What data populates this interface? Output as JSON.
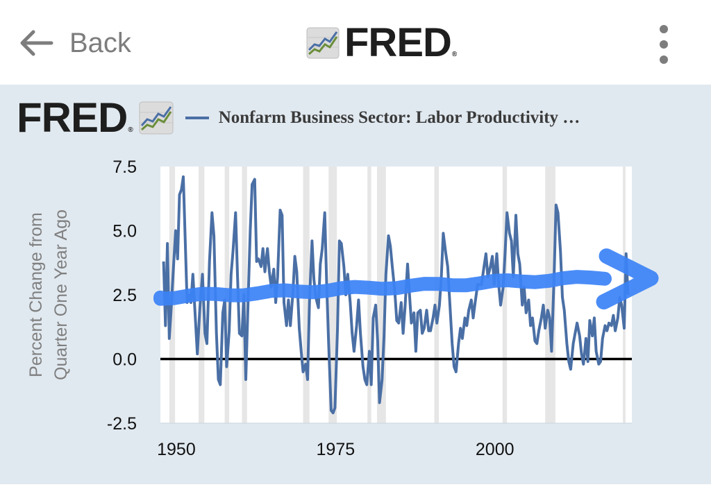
{
  "nav": {
    "back_label": "Back",
    "brand": "FRED",
    "brand_mark": "®",
    "icons": {
      "back": "arrow-left-icon",
      "more": "more-vertical-icon",
      "logo": "trend-graph-icon"
    }
  },
  "panel": {
    "brand": "FRED",
    "brand_mark": "®",
    "background_color": "#e1e9f0",
    "series_color": "#4a6fa5",
    "annotation_color": "#3b82f6"
  },
  "chart_data": {
    "type": "line",
    "title": "Nonfarm Business Sector: Labor Productivity …",
    "ylabel_lines": [
      "Percent Change from",
      "Quarter One Year Ago"
    ],
    "xlabel": "",
    "ylim": [
      -2.5,
      7.5
    ],
    "xlim": [
      1947.5,
      2021.5
    ],
    "y_ticks": [
      {
        "value": 7.5,
        "label": "7.5"
      },
      {
        "value": 5.0,
        "label": "5.0"
      },
      {
        "value": 2.5,
        "label": "2.5"
      },
      {
        "value": 0.0,
        "label": "0.0"
      },
      {
        "value": -2.5,
        "label": "-2.5"
      }
    ],
    "x_ticks": [
      {
        "value": 1950,
        "label": "1950"
      },
      {
        "value": 1975,
        "label": "1975"
      },
      {
        "value": 2000,
        "label": "2000"
      }
    ],
    "zero_line": 0,
    "recessions": [
      [
        1948.9,
        1949.8
      ],
      [
        1953.5,
        1954.4
      ],
      [
        1957.6,
        1958.3
      ],
      [
        1960.3,
        1961.1
      ],
      [
        1969.9,
        1970.9
      ],
      [
        1973.9,
        1975.2
      ],
      [
        1980.0,
        1980.6
      ],
      [
        1981.5,
        1982.9
      ],
      [
        1990.5,
        1991.2
      ],
      [
        2001.2,
        2001.9
      ],
      [
        2007.9,
        2009.5
      ],
      [
        2020.1,
        2020.5
      ]
    ],
    "series": [
      {
        "name": "Nonfarm Business Sector: Labor Productivity",
        "points": [
          [
            1948.0,
            3.8
          ],
          [
            1948.3,
            1.3
          ],
          [
            1948.6,
            4.5
          ],
          [
            1948.9,
            0.8
          ],
          [
            1949.2,
            2.0
          ],
          [
            1949.6,
            3.8
          ],
          [
            1949.9,
            5.0
          ],
          [
            1950.2,
            3.9
          ],
          [
            1950.5,
            6.4
          ],
          [
            1950.8,
            6.6
          ],
          [
            1951.1,
            7.1
          ],
          [
            1951.4,
            4.6
          ],
          [
            1951.7,
            2.2
          ],
          [
            1952.0,
            2.5
          ],
          [
            1952.3,
            2.2
          ],
          [
            1952.6,
            3.3
          ],
          [
            1952.9,
            2.0
          ],
          [
            1953.3,
            0.2
          ],
          [
            1953.7,
            2.0
          ],
          [
            1954.1,
            3.3
          ],
          [
            1954.5,
            1.0
          ],
          [
            1954.8,
            0.6
          ],
          [
            1955.2,
            3.8
          ],
          [
            1955.6,
            5.7
          ],
          [
            1955.9,
            4.8
          ],
          [
            1956.3,
            1.0
          ],
          [
            1956.6,
            -0.8
          ],
          [
            1956.9,
            -1.0
          ],
          [
            1957.3,
            1.8
          ],
          [
            1957.6,
            2.3
          ],
          [
            1957.9,
            -0.3
          ],
          [
            1958.3,
            1.1
          ],
          [
            1958.6,
            3.3
          ],
          [
            1958.9,
            4.2
          ],
          [
            1959.3,
            5.7
          ],
          [
            1959.6,
            3.3
          ],
          [
            1959.9,
            1.0
          ],
          [
            1960.3,
            0.9
          ],
          [
            1960.6,
            2.5
          ],
          [
            1960.9,
            -0.8
          ],
          [
            1961.3,
            2.5
          ],
          [
            1961.6,
            5.0
          ],
          [
            1961.9,
            6.8
          ],
          [
            1962.3,
            7.0
          ],
          [
            1962.6,
            3.8
          ],
          [
            1962.9,
            3.9
          ],
          [
            1963.3,
            3.6
          ],
          [
            1963.6,
            4.3
          ],
          [
            1963.9,
            3.4
          ],
          [
            1964.3,
            4.3
          ],
          [
            1964.6,
            3.4
          ],
          [
            1964.9,
            2.8
          ],
          [
            1965.3,
            3.5
          ],
          [
            1965.6,
            2.2
          ],
          [
            1965.9,
            3.2
          ],
          [
            1966.3,
            5.8
          ],
          [
            1966.6,
            5.6
          ],
          [
            1966.9,
            2.2
          ],
          [
            1967.3,
            1.3
          ],
          [
            1967.6,
            2.3
          ],
          [
            1967.9,
            1.3
          ],
          [
            1968.3,
            2.6
          ],
          [
            1968.6,
            4.0
          ],
          [
            1968.9,
            3.4
          ],
          [
            1969.3,
            1.2
          ],
          [
            1969.6,
            0.3
          ],
          [
            1969.9,
            -0.5
          ],
          [
            1970.3,
            -0.2
          ],
          [
            1970.6,
            -0.8
          ],
          [
            1970.9,
            2.2
          ],
          [
            1971.3,
            4.6
          ],
          [
            1971.6,
            3.1
          ],
          [
            1971.9,
            2.4
          ],
          [
            1972.3,
            2.0
          ],
          [
            1972.6,
            3.7
          ],
          [
            1972.9,
            4.3
          ],
          [
            1973.3,
            5.7
          ],
          [
            1973.6,
            2.9
          ],
          [
            1973.9,
            0.7
          ],
          [
            1974.3,
            -2.0
          ],
          [
            1974.6,
            -2.1
          ],
          [
            1974.9,
            -1.9
          ],
          [
            1975.3,
            1.2
          ],
          [
            1975.6,
            4.6
          ],
          [
            1975.9,
            4.5
          ],
          [
            1976.3,
            3.6
          ],
          [
            1976.6,
            2.5
          ],
          [
            1976.9,
            3.3
          ],
          [
            1977.3,
            2.2
          ],
          [
            1977.6,
            1.0
          ],
          [
            1977.9,
            0.3
          ],
          [
            1978.3,
            1.3
          ],
          [
            1978.6,
            2.3
          ],
          [
            1978.9,
            1.0
          ],
          [
            1979.3,
            -0.3
          ],
          [
            1979.6,
            -0.8
          ],
          [
            1979.9,
            -1.0
          ],
          [
            1980.3,
            0.3
          ],
          [
            1980.6,
            -1.0
          ],
          [
            1980.9,
            1.6
          ],
          [
            1981.3,
            2.1
          ],
          [
            1981.6,
            0.7
          ],
          [
            1981.9,
            -1.7
          ],
          [
            1982.3,
            -0.8
          ],
          [
            1982.6,
            0.9
          ],
          [
            1982.9,
            3.3
          ],
          [
            1983.3,
            4.8
          ],
          [
            1983.6,
            4.4
          ],
          [
            1983.9,
            3.6
          ],
          [
            1984.3,
            2.6
          ],
          [
            1984.6,
            1.5
          ],
          [
            1984.9,
            1.4
          ],
          [
            1985.3,
            2.2
          ],
          [
            1985.6,
            1.0
          ],
          [
            1985.9,
            2.0
          ],
          [
            1986.3,
            3.7
          ],
          [
            1986.6,
            2.5
          ],
          [
            1986.9,
            1.4
          ],
          [
            1987.3,
            1.8
          ],
          [
            1987.6,
            0.3
          ],
          [
            1987.9,
            1.8
          ],
          [
            1988.3,
            1.9
          ],
          [
            1988.6,
            1.0
          ],
          [
            1988.9,
            1.2
          ],
          [
            1989.3,
            1.9
          ],
          [
            1989.6,
            1.1
          ],
          [
            1989.9,
            1.1
          ],
          [
            1990.3,
            1.6
          ],
          [
            1990.6,
            2.1
          ],
          [
            1990.9,
            1.4
          ],
          [
            1991.3,
            2.1
          ],
          [
            1991.6,
            3.2
          ],
          [
            1991.9,
            4.9
          ],
          [
            1992.3,
            4.1
          ],
          [
            1992.6,
            3.6
          ],
          [
            1992.9,
            2.3
          ],
          [
            1993.3,
            0.6
          ],
          [
            1993.6,
            -0.3
          ],
          [
            1993.9,
            -0.5
          ],
          [
            1994.3,
            0.6
          ],
          [
            1994.6,
            1.2
          ],
          [
            1994.9,
            0.8
          ],
          [
            1995.3,
            1.6
          ],
          [
            1995.6,
            1.3
          ],
          [
            1995.9,
            1.9
          ],
          [
            1996.3,
            2.3
          ],
          [
            1996.6,
            1.6
          ],
          [
            1996.9,
            2.2
          ],
          [
            1997.3,
            2.9
          ],
          [
            1997.6,
            2.9
          ],
          [
            1997.9,
            2.9
          ],
          [
            1998.3,
            3.6
          ],
          [
            1998.6,
            4.1
          ],
          [
            1998.9,
            3.2
          ],
          [
            1999.3,
            3.6
          ],
          [
            1999.6,
            4.0
          ],
          [
            1999.9,
            2.9
          ],
          [
            2000.3,
            4.1
          ],
          [
            2000.6,
            2.9
          ],
          [
            2000.9,
            2.1
          ],
          [
            2001.3,
            2.8
          ],
          [
            2001.6,
            4.1
          ],
          [
            2001.9,
            5.7
          ],
          [
            2002.3,
            4.9
          ],
          [
            2002.6,
            4.6
          ],
          [
            2002.9,
            3.2
          ],
          [
            2003.3,
            5.6
          ],
          [
            2003.6,
            4.1
          ],
          [
            2003.9,
            3.7
          ],
          [
            2004.3,
            2.1
          ],
          [
            2004.6,
            2.8
          ],
          [
            2004.9,
            1.8
          ],
          [
            2005.3,
            2.3
          ],
          [
            2005.6,
            1.3
          ],
          [
            2005.9,
            1.6
          ],
          [
            2006.3,
            0.7
          ],
          [
            2006.6,
            0.6
          ],
          [
            2006.9,
            1.1
          ],
          [
            2007.3,
            1.6
          ],
          [
            2007.6,
            2.1
          ],
          [
            2007.9,
            1.2
          ],
          [
            2008.3,
            1.9
          ],
          [
            2008.6,
            1.6
          ],
          [
            2008.9,
            0.3
          ],
          [
            2009.3,
            3.3
          ],
          [
            2009.6,
            6.0
          ],
          [
            2009.9,
            5.7
          ],
          [
            2010.3,
            4.2
          ],
          [
            2010.6,
            2.4
          ],
          [
            2010.9,
            1.9
          ],
          [
            2011.3,
            0.6
          ],
          [
            2011.6,
            -0.1
          ],
          [
            2011.9,
            -0.4
          ],
          [
            2012.3,
            0.6
          ],
          [
            2012.6,
            1.0
          ],
          [
            2012.9,
            1.4
          ],
          [
            2013.3,
            0.9
          ],
          [
            2013.6,
            0.2
          ],
          [
            2013.9,
            -0.2
          ],
          [
            2014.3,
            0.8
          ],
          [
            2014.6,
            -0.1
          ],
          [
            2014.9,
            1.5
          ],
          [
            2015.3,
            0.9
          ],
          [
            2015.6,
            1.6
          ],
          [
            2015.9,
            0.3
          ],
          [
            2016.3,
            -0.2
          ],
          [
            2016.6,
            -0.1
          ],
          [
            2016.9,
            0.8
          ],
          [
            2017.3,
            1.3
          ],
          [
            2017.6,
            1.1
          ],
          [
            2017.9,
            1.4
          ],
          [
            2018.3,
            1.3
          ],
          [
            2018.6,
            1.7
          ],
          [
            2018.9,
            1.1
          ],
          [
            2019.3,
            1.6
          ],
          [
            2019.6,
            2.4
          ],
          [
            2019.9,
            2.1
          ],
          [
            2020.3,
            1.2
          ],
          [
            2020.6,
            4.1
          ],
          [
            2020.9,
            2.5
          ]
        ]
      }
    ],
    "annotation": {
      "type": "arrow",
      "description_value": "trend",
      "y_start": 2.4,
      "y_end": 3.2,
      "x_start": 1947.5,
      "x_end": 2024.5
    }
  }
}
